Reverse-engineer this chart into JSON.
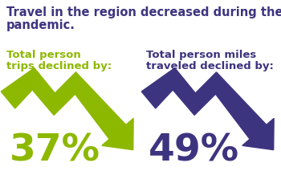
{
  "title_line1": "Travel in the region decreased during the",
  "title_line2": "pandemic.",
  "title_color": "#3d3480",
  "title_fontsize": 10.5,
  "background_color": "#ffffff",
  "left_label_line1": "Total person",
  "left_label_line2": "trips declined by:",
  "right_label_line1": "Total person miles",
  "right_label_line2": "traveled declined by:",
  "left_pct": "37%",
  "right_pct": "49%",
  "left_color": "#8db800",
  "right_color": "#3d3480",
  "label_fontsize": 9.5,
  "pct_fontsize": 34
}
